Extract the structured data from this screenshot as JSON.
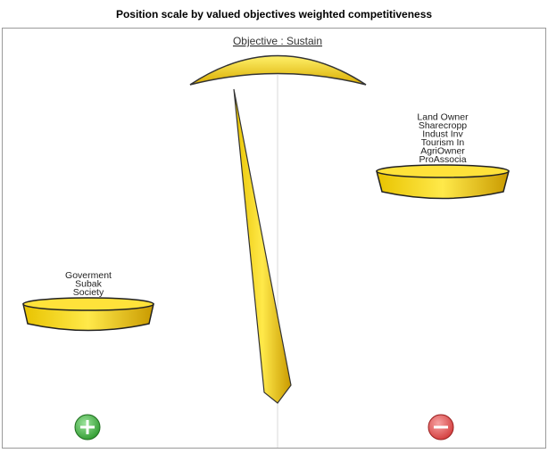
{
  "title": "Position scale by valued objectives weighted competitiveness",
  "subtitle": "Objective : Sustain",
  "left_pan": {
    "labels": [
      "Goverment",
      "Subak",
      "Society"
    ]
  },
  "right_pan": {
    "labels": [
      "Land Owner",
      "Sharecropp",
      "Indust Inv",
      "Tourism In",
      "AgriOwner",
      "ProAssocia"
    ]
  }
}
